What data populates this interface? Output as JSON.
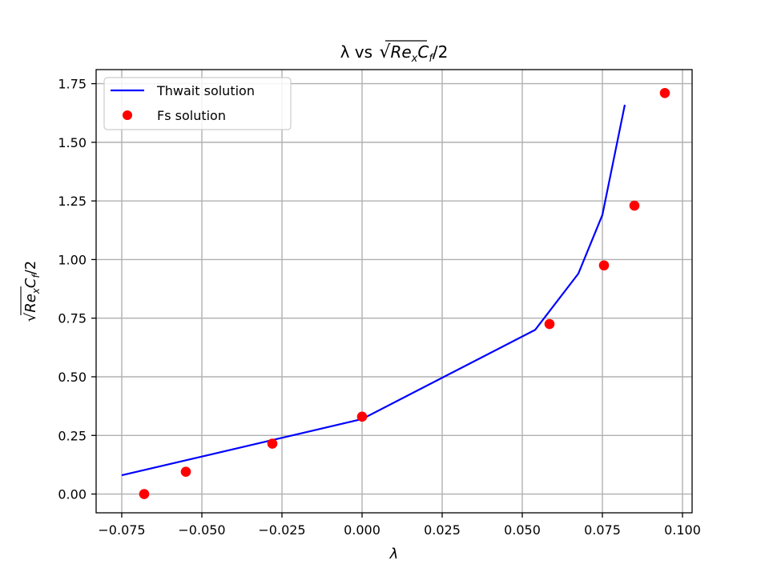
{
  "chart_data": {
    "type": "line",
    "title": "λ vs √Reₓ C_f/2",
    "title_parts": {
      "prefix": "λ vs ",
      "radicand": "Re",
      "radicand_sub": "x",
      "factor": "C",
      "factor_sub": "f",
      "suffix": "/2"
    },
    "xlabel": "λ",
    "ylabel": "√Reₓ C_f/2",
    "ylabel_parts": {
      "radicand": "Re",
      "radicand_sub": "x",
      "factor": "C",
      "factor_sub": "f",
      "suffix": "/2"
    },
    "xlim": [
      -0.083,
      0.103
    ],
    "ylim": [
      -0.08,
      1.81
    ],
    "x_ticks": [
      -0.075,
      -0.05,
      -0.025,
      0.0,
      0.025,
      0.05,
      0.075,
      0.1
    ],
    "x_tick_labels": [
      "−0.075",
      "−0.050",
      "−0.025",
      "0.000",
      "0.025",
      "0.050",
      "0.075",
      "0.100"
    ],
    "y_ticks": [
      0.0,
      0.25,
      0.5,
      0.75,
      1.0,
      1.25,
      1.5,
      1.75
    ],
    "y_tick_labels": [
      "0.00",
      "0.25",
      "0.50",
      "0.75",
      "1.00",
      "1.25",
      "1.50",
      "1.75"
    ],
    "grid": true,
    "legend_position": "top-left",
    "series": [
      {
        "name": "Thwait solution",
        "kind": "line",
        "color": "#0000ff",
        "x": [
          -0.075,
          -0.028,
          0.0,
          0.054,
          0.0675,
          0.075,
          0.082
        ],
        "y": [
          0.08,
          0.23,
          0.32,
          0.7,
          0.94,
          1.19,
          1.66
        ]
      },
      {
        "name": "Fs solution",
        "kind": "scatter",
        "color": "#ff0000",
        "x": [
          -0.068,
          -0.055,
          -0.028,
          0.0,
          0.0585,
          0.0755,
          0.085,
          0.0945
        ],
        "y": [
          0.0,
          0.095,
          0.215,
          0.33,
          0.725,
          0.975,
          1.23,
          1.71
        ]
      }
    ]
  }
}
